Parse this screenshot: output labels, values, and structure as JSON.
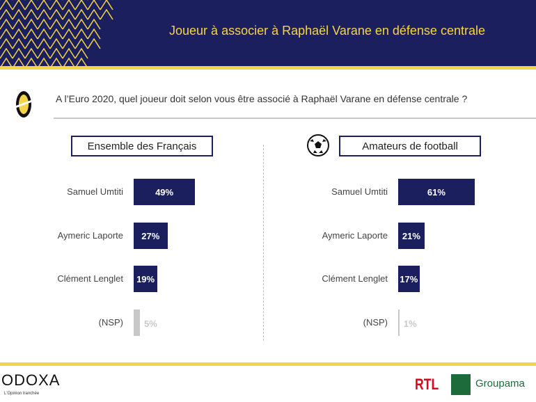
{
  "header": {
    "title": "Joueur à associer à Raphaël Varane en défense centrale"
  },
  "question": "A l’Euro 2020, quel joueur doit selon vous être associé à Raphaël Varane en défense centrale ?",
  "footer": {
    "brand": "ODOXA",
    "tagline": "L'Opinion tranchée",
    "partner1": "RTL",
    "partner2": "Groupama"
  },
  "chart_data": [
    {
      "type": "bar",
      "title": "Ensemble des Français",
      "categories": [
        "Samuel Umtiti",
        "Aymeric Laporte",
        "Clément Lenglet",
        "(NSP)"
      ],
      "values": [
        49,
        27,
        19,
        5
      ],
      "labels": [
        "49%",
        "27%",
        "19%",
        "5%"
      ],
      "unit": "%"
    },
    {
      "type": "bar",
      "title": "Amateurs de football",
      "categories": [
        "Samuel Umtiti",
        "Aymeric Laporte",
        "Clément Lenglet",
        "(NSP)"
      ],
      "values": [
        61,
        21,
        17,
        1
      ],
      "labels": [
        "61%",
        "21%",
        "17%",
        "1%"
      ],
      "unit": "%"
    }
  ],
  "colors": {
    "navy": "#1b1f5e",
    "yellow": "#f5d547",
    "nsp": "#c8c8c8"
  }
}
